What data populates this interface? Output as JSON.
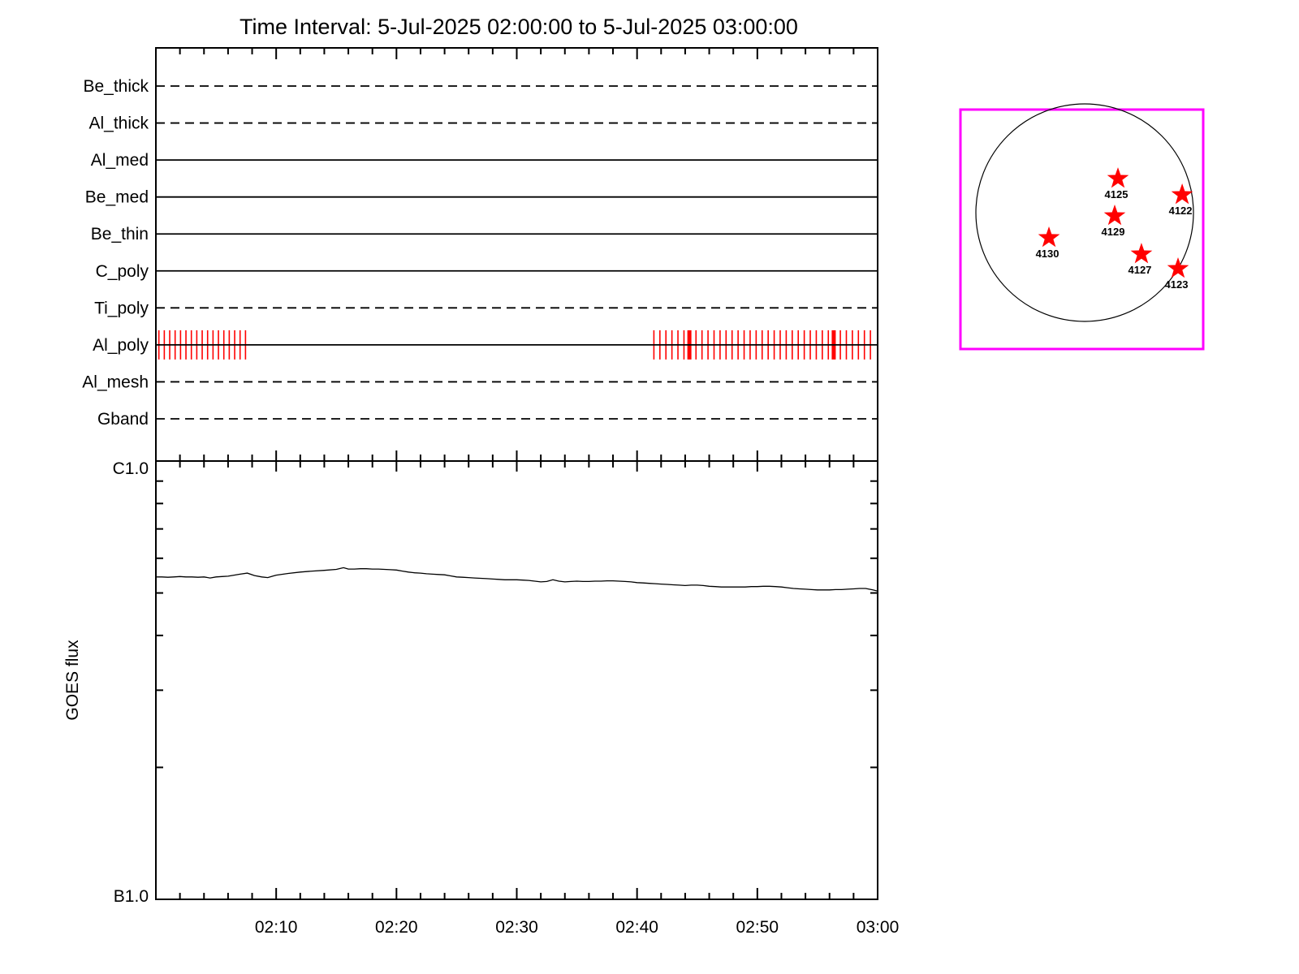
{
  "title": "Time Interval:  5-Jul-2025 02:00:00 to  5-Jul-2025 03:00:00",
  "colors": {
    "line": "#000000",
    "exposure_red": "#FF0000",
    "inset_border_magenta": "#FF00FF",
    "star_red": "#FF0000",
    "background": "#FFFFFF"
  },
  "chart_data": [
    {
      "type": "line",
      "title": "XRT filter exposure timeline",
      "x_range_minutes": [
        0,
        60
      ],
      "x_start_time": "02:00",
      "x_end_time": "03:00",
      "x_major_tick_minutes": [
        10,
        20,
        30,
        40,
        50,
        60
      ],
      "x_minor_step_minutes": 2,
      "grid": false,
      "filters": [
        {
          "label": "Be_thick",
          "style": "dashed"
        },
        {
          "label": "Al_thick",
          "style": "dashed"
        },
        {
          "label": "Al_med",
          "style": "solid"
        },
        {
          "label": "Be_med",
          "style": "solid"
        },
        {
          "label": "Be_thin",
          "style": "solid"
        },
        {
          "label": "C_poly",
          "style": "solid"
        },
        {
          "label": "Ti_poly",
          "style": "dashed"
        },
        {
          "label": "Al_poly",
          "style": "solid",
          "has_exposures": true
        },
        {
          "label": "Al_mesh",
          "style": "dashed"
        },
        {
          "label": "Gband",
          "style": "dashed"
        }
      ],
      "exposures": {
        "filter": "Al_poly",
        "thin_tick_minutes": [
          0.25,
          0.7,
          1.15,
          1.6,
          2.05,
          2.5,
          2.95,
          3.4,
          3.85,
          4.3,
          4.75,
          5.2,
          5.65,
          6.1,
          6.55,
          7.0,
          7.45,
          41.4,
          41.9,
          42.4,
          42.9,
          43.4,
          43.9,
          44.9,
          45.4,
          45.9,
          46.4,
          46.9,
          47.4,
          47.9,
          48.4,
          48.9,
          49.4,
          49.9,
          50.4,
          50.9,
          51.4,
          51.9,
          52.4,
          52.9,
          53.4,
          53.9,
          54.4,
          54.9,
          55.4,
          55.9,
          56.9,
          57.4,
          57.9,
          58.4,
          58.9,
          59.4
        ],
        "thick_tick_minutes": [
          44.35,
          56.35
        ]
      }
    },
    {
      "type": "line",
      "ylabel": "GOES flux",
      "y_top_label": "C1.0",
      "y_bottom_label": "B1.0",
      "y_scale": "log",
      "y_range_wm2": [
        1e-07,
        1e-06
      ],
      "y_minor_flux_1e7": [
        9,
        8,
        7,
        6,
        5,
        4,
        3,
        2
      ],
      "x_tick_labels": [
        "02:10",
        "02:20",
        "02:30",
        "02:40",
        "02:50",
        "03:00"
      ],
      "x_tick_minutes": [
        10,
        20,
        30,
        40,
        50,
        60
      ],
      "flux_units": "1e-7 W/m^2",
      "points": [
        [
          0,
          5.44
        ],
        [
          0.5,
          5.44
        ],
        [
          1,
          5.43
        ],
        [
          1.5,
          5.44
        ],
        [
          2,
          5.45
        ],
        [
          2.5,
          5.44
        ],
        [
          3,
          5.44
        ],
        [
          3.5,
          5.43
        ],
        [
          4,
          5.44
        ],
        [
          4.5,
          5.41
        ],
        [
          5,
          5.44
        ],
        [
          5.5,
          5.45
        ],
        [
          6,
          5.46
        ],
        [
          6.5,
          5.49
        ],
        [
          7,
          5.52
        ],
        [
          7.6,
          5.55
        ],
        [
          8.2,
          5.48
        ],
        [
          8.8,
          5.44
        ],
        [
          9.3,
          5.42
        ],
        [
          9.7,
          5.46
        ],
        [
          10,
          5.49
        ],
        [
          11,
          5.54
        ],
        [
          12,
          5.58
        ],
        [
          13,
          5.61
        ],
        [
          14,
          5.63
        ],
        [
          15,
          5.66
        ],
        [
          15.6,
          5.71
        ],
        [
          16,
          5.67
        ],
        [
          16.5,
          5.67
        ],
        [
          17,
          5.68
        ],
        [
          17.5,
          5.68
        ],
        [
          18,
          5.67
        ],
        [
          18.5,
          5.67
        ],
        [
          19,
          5.66
        ],
        [
          19.5,
          5.65
        ],
        [
          20,
          5.64
        ],
        [
          20.5,
          5.61
        ],
        [
          21,
          5.58
        ],
        [
          21.5,
          5.56
        ],
        [
          22,
          5.55
        ],
        [
          22.5,
          5.53
        ],
        [
          23,
          5.52
        ],
        [
          23.5,
          5.51
        ],
        [
          24,
          5.5
        ],
        [
          24.5,
          5.47
        ],
        [
          25,
          5.44
        ],
        [
          25.5,
          5.43
        ],
        [
          26,
          5.42
        ],
        [
          26.5,
          5.41
        ],
        [
          27,
          5.4
        ],
        [
          27.5,
          5.39
        ],
        [
          28,
          5.38
        ],
        [
          28.5,
          5.37
        ],
        [
          29,
          5.36
        ],
        [
          29.5,
          5.36
        ],
        [
          30,
          5.36
        ],
        [
          30.5,
          5.35
        ],
        [
          31,
          5.34
        ],
        [
          31.5,
          5.32
        ],
        [
          32,
          5.3
        ],
        [
          32.5,
          5.31
        ],
        [
          33,
          5.36
        ],
        [
          33.5,
          5.32
        ],
        [
          34,
          5.3
        ],
        [
          34.5,
          5.31
        ],
        [
          35,
          5.32
        ],
        [
          35.5,
          5.31
        ],
        [
          36,
          5.31
        ],
        [
          36.5,
          5.32
        ],
        [
          37,
          5.32
        ],
        [
          37.5,
          5.33
        ],
        [
          38,
          5.33
        ],
        [
          38.5,
          5.32
        ],
        [
          39,
          5.31
        ],
        [
          39.5,
          5.3
        ],
        [
          40,
          5.28
        ],
        [
          40.5,
          5.27
        ],
        [
          41,
          5.26
        ],
        [
          41.5,
          5.25
        ],
        [
          42,
          5.24
        ],
        [
          42.5,
          5.23
        ],
        [
          43,
          5.22
        ],
        [
          43.5,
          5.21
        ],
        [
          44,
          5.2
        ],
        [
          44.5,
          5.21
        ],
        [
          45,
          5.21
        ],
        [
          45.5,
          5.2
        ],
        [
          46,
          5.18
        ],
        [
          46.5,
          5.17
        ],
        [
          47,
          5.16
        ],
        [
          47.5,
          5.16
        ],
        [
          48,
          5.16
        ],
        [
          48.5,
          5.16
        ],
        [
          49,
          5.16
        ],
        [
          49.5,
          5.17
        ],
        [
          50,
          5.17
        ],
        [
          50.5,
          5.18
        ],
        [
          51,
          5.18
        ],
        [
          51.5,
          5.17
        ],
        [
          52,
          5.16
        ],
        [
          52.5,
          5.14
        ],
        [
          53,
          5.12
        ],
        [
          53.5,
          5.11
        ],
        [
          54,
          5.1
        ],
        [
          54.5,
          5.09
        ],
        [
          55,
          5.08
        ],
        [
          55.5,
          5.08
        ],
        [
          56,
          5.08
        ],
        [
          56.5,
          5.09
        ],
        [
          57,
          5.09
        ],
        [
          57.5,
          5.1
        ],
        [
          58,
          5.11
        ],
        [
          58.5,
          5.12
        ],
        [
          59,
          5.12
        ],
        [
          59.3,
          5.1
        ],
        [
          59.6,
          5.08
        ],
        [
          60,
          5.05
        ]
      ]
    },
    {
      "type": "scatter",
      "title": "Solar disk with target active regions",
      "marker": "star",
      "regions": [
        {
          "label": "4125",
          "rx": 0.306,
          "ry": -0.313
        },
        {
          "label": "4122",
          "rx": 0.896,
          "ry": -0.164
        },
        {
          "label": "4129",
          "rx": 0.276,
          "ry": 0.03
        },
        {
          "label": "4130",
          "rx": -0.328,
          "ry": 0.231
        },
        {
          "label": "4127",
          "rx": 0.522,
          "ry": 0.381
        },
        {
          "label": "4123",
          "rx": 0.858,
          "ry": 0.515
        }
      ]
    }
  ]
}
